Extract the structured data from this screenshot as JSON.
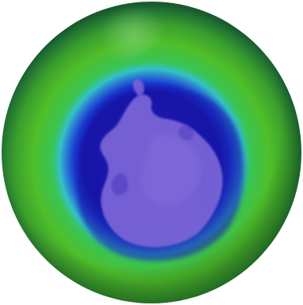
{
  "map": {
    "subject": "ozone-hole-south-pole",
    "colors": {
      "background": "#ffffff",
      "outer_rim": "#1f6f33",
      "outer_ring": "#3a9e2c",
      "mid_ring": "#4fbf2a",
      "inner_green": "#39c454",
      "cyan_edge": "#34c1c6",
      "blue_band": "#1b3bcf",
      "deep_blue": "#1715a8",
      "core": "#2a1fb6",
      "continent": "#7b66d8",
      "highlight": "#8fd48a"
    }
  }
}
